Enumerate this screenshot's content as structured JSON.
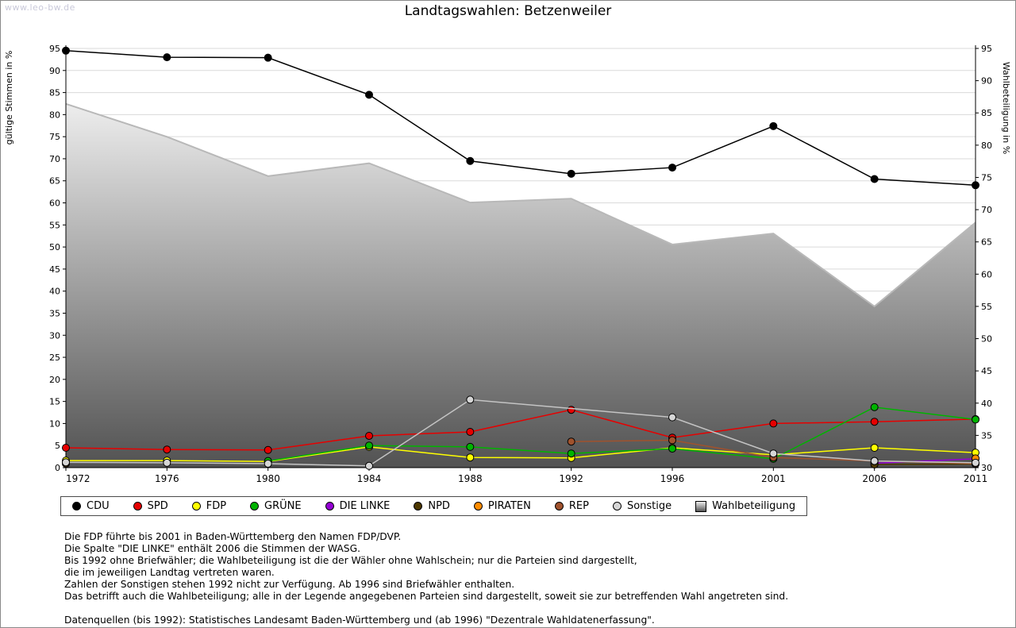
{
  "watermark": "www.leo-bw.de",
  "title": "Landtagswahlen: Betzenweiler",
  "chart_data": {
    "type": "line",
    "x": [
      1972,
      1976,
      1980,
      1984,
      1988,
      1992,
      1996,
      2001,
      2006,
      2011
    ],
    "left_axis": {
      "label": "gültige Stimmen in %",
      "min": 0,
      "max": 95,
      "ticks": [
        0,
        5,
        10,
        15,
        20,
        25,
        30,
        35,
        40,
        45,
        50,
        55,
        60,
        65,
        70,
        75,
        80,
        85,
        90,
        95
      ]
    },
    "right_axis": {
      "label": "Wahlbeteiligung in %",
      "min": 30,
      "max": 95,
      "ticks": [
        30,
        35,
        40,
        45,
        50,
        55,
        60,
        65,
        70,
        75,
        80,
        85,
        90,
        95
      ]
    },
    "series": [
      {
        "name": "CDU",
        "color": "#000000",
        "values": [
          94.5,
          93.0,
          92.9,
          84.5,
          69.5,
          66.6,
          68.0,
          77.4,
          65.4,
          64.0
        ]
      },
      {
        "name": "SPD",
        "color": "#e60000",
        "values": [
          4.5,
          4.1,
          4.0,
          7.2,
          8.1,
          13.1,
          6.8,
          10.0,
          10.4,
          11.0
        ]
      },
      {
        "name": "FDP",
        "color": "#ffff00",
        "values": [
          1.6,
          1.6,
          1.4,
          4.7,
          2.3,
          2.2,
          4.5,
          2.9,
          4.5,
          3.4
        ]
      },
      {
        "name": "GRÜNE",
        "color": "#00b400",
        "values": [
          null,
          null,
          1.5,
          5.0,
          4.7,
          3.2,
          4.3,
          2.0,
          13.7,
          10.9
        ]
      },
      {
        "name": "DIE LINKE",
        "color": "#9400d3",
        "values": [
          null,
          null,
          null,
          null,
          null,
          null,
          null,
          null,
          1.0,
          2.0
        ]
      },
      {
        "name": "NPD",
        "color": "#4d3800",
        "values": [
          0.9,
          null,
          null,
          null,
          null,
          null,
          null,
          null,
          0.7,
          0.8
        ]
      },
      {
        "name": "PIRATEN",
        "color": "#ff8c00",
        "values": [
          null,
          null,
          null,
          null,
          null,
          null,
          null,
          null,
          null,
          2.1
        ]
      },
      {
        "name": "REP",
        "color": "#a0522d",
        "values": [
          null,
          null,
          null,
          null,
          null,
          5.9,
          6.2,
          2.3,
          1.5,
          0.9
        ]
      },
      {
        "name": "Sonstige",
        "color": "#d6d6d6",
        "line_color": "#c4c4c4",
        "connect_gaps": true,
        "values": [
          1.2,
          1.1,
          0.9,
          0.4,
          15.4,
          null,
          11.4,
          3.2,
          1.5,
          1.1
        ]
      }
    ],
    "area_series": {
      "name": "Wahlbeteiligung",
      "axis": "right",
      "values": [
        86.4,
        81.3,
        75.2,
        77.2,
        71.1,
        71.7,
        64.6,
        66.3,
        55.0,
        68.0
      ],
      "fill_top": "#ededed",
      "fill_bottom": "#525252",
      "stroke": "#b8b8b8"
    },
    "grid": "horizontal",
    "legend_position": "bottom"
  },
  "footnotes": {
    "lines": [
      "Die FDP führte bis 2001 in Baden-Württemberg den Namen FDP/DVP.",
      "Die Spalte \"DIE LINKE\" enthält 2006 die Stimmen der WASG.",
      "Bis 1992 ohne Briefwähler; die Wahlbeteiligung ist die der Wähler ohne Wahlschein; nur die Parteien sind dargestellt,",
      "die im jeweiligen Landtag vertreten waren.",
      "Zahlen der Sonstigen stehen 1992 nicht zur Verfügung. Ab 1996 sind Briefwähler enthalten.",
      "Das betrifft auch die Wahlbeteiligung; alle in der Legende angegebenen Parteien sind dargestellt, soweit sie zur betreffenden Wahl angetreten sind.",
      "",
      "Datenquellen (bis 1992): Statistisches Landesamt Baden-Württemberg und (ab 1996) \"Dezentrale Wahldatenerfassung\"."
    ]
  }
}
